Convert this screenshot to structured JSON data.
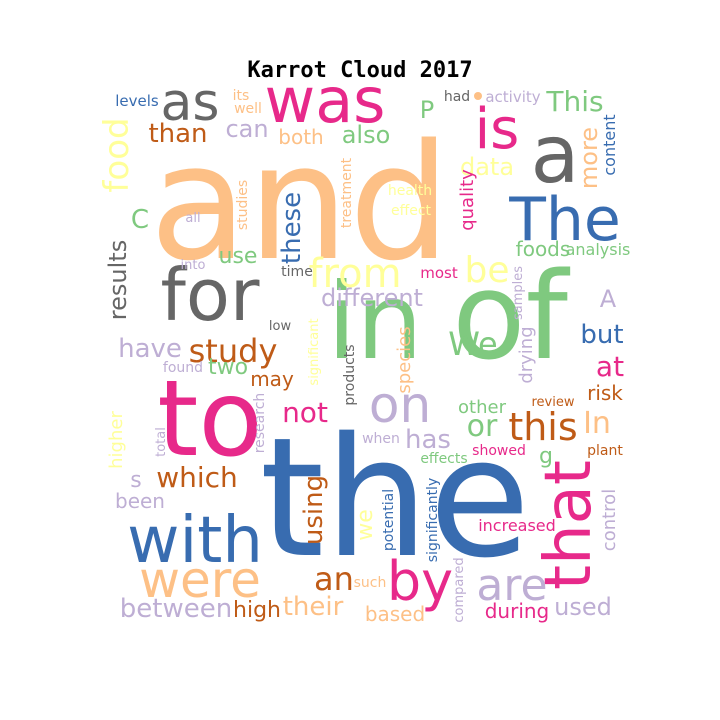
{
  "title": "Karrot Cloud 2017",
  "colors": {
    "pink": "#e7298a",
    "green": "#7fc97f",
    "orange": "#fdc086",
    "lavender": "#beaed4",
    "yellow": "#ffff99",
    "blue": "#386cb0",
    "brown": "#bf5b17",
    "gray": "#666666"
  },
  "words": [
    {
      "text": "and",
      "color": "orange"
    },
    {
      "text": "the",
      "color": "blue"
    },
    {
      "text": "of",
      "color": "green"
    },
    {
      "text": "in",
      "color": "green"
    },
    {
      "text": "to",
      "color": "pink"
    },
    {
      "text": "a",
      "color": "gray"
    },
    {
      "text": "for",
      "color": "gray"
    },
    {
      "text": "was",
      "color": "pink"
    },
    {
      "text": "is",
      "color": "pink"
    },
    {
      "text": "The",
      "color": "blue"
    },
    {
      "text": "with",
      "color": "blue"
    },
    {
      "text": "that",
      "color": "pink"
    },
    {
      "text": "were",
      "color": "orange"
    },
    {
      "text": "as",
      "color": "gray"
    },
    {
      "text": "on",
      "color": "lavender"
    },
    {
      "text": "by",
      "color": "pink"
    },
    {
      "text": "are",
      "color": "lavender"
    },
    {
      "text": "from",
      "color": "yellow"
    },
    {
      "text": "this",
      "color": "brown"
    },
    {
      "text": "be",
      "color": "yellow"
    },
    {
      "text": "study",
      "color": "brown"
    },
    {
      "text": "food",
      "color": "yellow"
    },
    {
      "text": "these",
      "color": "blue"
    },
    {
      "text": "an",
      "color": "brown"
    },
    {
      "text": "their",
      "color": "orange"
    },
    {
      "text": "between",
      "color": "lavender"
    },
    {
      "text": "which",
      "color": "brown"
    },
    {
      "text": "results",
      "color": "gray"
    },
    {
      "text": "have",
      "color": "lavender"
    },
    {
      "text": "different",
      "color": "lavender"
    },
    {
      "text": "This",
      "color": "green"
    },
    {
      "text": "using",
      "color": "brown"
    },
    {
      "text": "We",
      "color": "green"
    },
    {
      "text": "or",
      "color": "green"
    },
    {
      "text": "In",
      "color": "orange"
    },
    {
      "text": "at",
      "color": "pink"
    },
    {
      "text": "but",
      "color": "blue"
    },
    {
      "text": "not",
      "color": "pink"
    },
    {
      "text": "has",
      "color": "lavender"
    },
    {
      "text": "than",
      "color": "brown"
    },
    {
      "text": "can",
      "color": "lavender"
    },
    {
      "text": "also",
      "color": "green"
    },
    {
      "text": "both",
      "color": "orange"
    },
    {
      "text": "data",
      "color": "yellow"
    },
    {
      "text": "more",
      "color": "orange"
    },
    {
      "text": "used",
      "color": "lavender"
    },
    {
      "text": "high",
      "color": "brown"
    },
    {
      "text": "use",
      "color": "green"
    },
    {
      "text": "may",
      "color": "brown"
    },
    {
      "text": "two",
      "color": "green"
    },
    {
      "text": "species",
      "color": "orange"
    },
    {
      "text": "other",
      "color": "green"
    },
    {
      "text": "risk",
      "color": "brown"
    },
    {
      "text": "we",
      "color": "yellow"
    },
    {
      "text": "quality",
      "color": "pink"
    },
    {
      "text": "P",
      "color": "green"
    },
    {
      "text": "A",
      "color": "lavender"
    },
    {
      "text": "C",
      "color": "green"
    },
    {
      "text": "s",
      "color": "lavender"
    },
    {
      "text": "g",
      "color": "green"
    },
    {
      "text": "foods",
      "color": "green"
    },
    {
      "text": "analysis",
      "color": "green"
    },
    {
      "text": "content",
      "color": "blue"
    },
    {
      "text": "drying",
      "color": "lavender"
    },
    {
      "text": "control",
      "color": "lavender"
    },
    {
      "text": "during",
      "color": "pink"
    },
    {
      "text": "based",
      "color": "orange"
    },
    {
      "text": "been",
      "color": "lavender"
    },
    {
      "text": "higher",
      "color": "yellow"
    },
    {
      "text": "increased",
      "color": "pink"
    },
    {
      "text": "significantly",
      "color": "blue"
    },
    {
      "text": "potential",
      "color": "blue"
    },
    {
      "text": "most",
      "color": "pink"
    },
    {
      "text": "levels",
      "color": "blue"
    },
    {
      "text": "its",
      "color": "orange"
    },
    {
      "text": "well",
      "color": "orange"
    },
    {
      "text": "had",
      "color": "gray"
    },
    {
      "text": "activity",
      "color": "lavender"
    },
    {
      "text": "all",
      "color": "lavender"
    },
    {
      "text": "studies",
      "color": "orange"
    },
    {
      "text": "treatment",
      "color": "orange"
    },
    {
      "text": "health",
      "color": "yellow"
    },
    {
      "text": "effect",
      "color": "yellow"
    },
    {
      "text": "into",
      "color": "lavender"
    },
    {
      "text": "time",
      "color": "gray"
    },
    {
      "text": "low",
      "color": "gray"
    },
    {
      "text": "significant",
      "color": "yellow"
    },
    {
      "text": "found",
      "color": "lavender"
    },
    {
      "text": "products",
      "color": "gray"
    },
    {
      "text": "research",
      "color": "lavender"
    },
    {
      "text": "total",
      "color": "lavender"
    },
    {
      "text": "when",
      "color": "lavender"
    },
    {
      "text": "effects",
      "color": "green"
    },
    {
      "text": "showed",
      "color": "pink"
    },
    {
      "text": "review",
      "color": "brown"
    },
    {
      "text": "plant",
      "color": "brown"
    },
    {
      "text": "samples",
      "color": "lavender"
    },
    {
      "text": "such",
      "color": "orange"
    },
    {
      "text": "compared",
      "color": "lavender"
    }
  ]
}
